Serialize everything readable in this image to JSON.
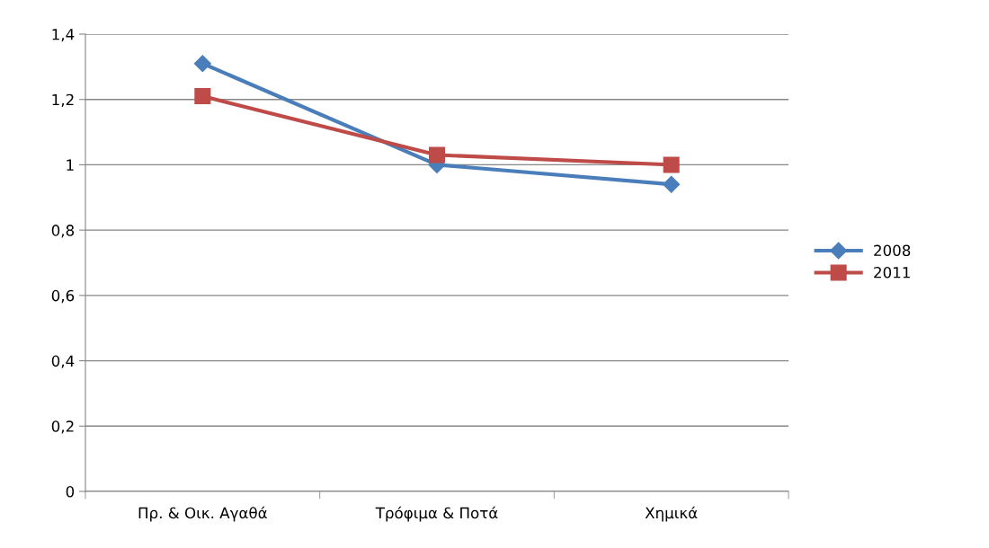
{
  "chart_data": {
    "type": "line",
    "categories": [
      "Πρ. & Οικ. Αγαθά",
      "Τρόφιμα & Ποτά",
      "Χημικά"
    ],
    "series": [
      {
        "name": "2008",
        "color": "#4a7ebb",
        "marker": "diamond",
        "values": [
          1.31,
          1.0,
          0.94
        ]
      },
      {
        "name": "2011",
        "color": "#be4b48",
        "marker": "square",
        "values": [
          1.21,
          1.03,
          1.0
        ]
      }
    ],
    "ylim": [
      0,
      1.4
    ],
    "yticks": [
      0,
      {
        "value": 0.2,
        "label": "0,2"
      },
      {
        "value": 0.4,
        "label": "0,4"
      },
      {
        "value": 0.6,
        "label": "0,6"
      },
      {
        "value": 0.8,
        "label": "0,8"
      },
      1,
      {
        "value": 1.2,
        "label": "1,2"
      },
      {
        "value": 1.4,
        "label": "1,4"
      }
    ],
    "grid": "y",
    "legend": "right",
    "line_style": "solid"
  }
}
